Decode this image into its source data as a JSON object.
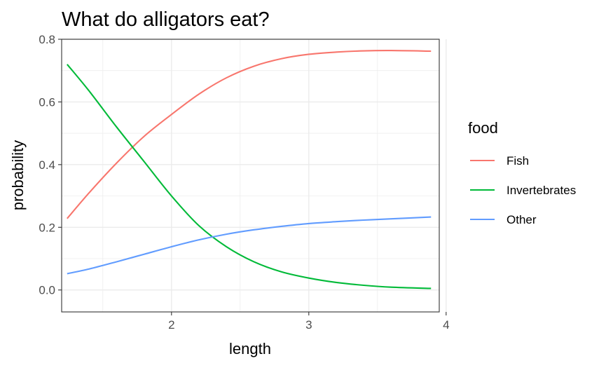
{
  "chart_data": {
    "type": "line",
    "title": "What do alligators eat?",
    "xlabel": "length",
    "ylabel": "probability",
    "xlim": [
      1.2,
      3.95
    ],
    "ylim": [
      -0.07,
      0.8
    ],
    "x_ticks": [
      2,
      3,
      4
    ],
    "x_tick_labels": [
      "2",
      "3",
      "4"
    ],
    "y_ticks": [
      0.0,
      0.2,
      0.4,
      0.6,
      0.8
    ],
    "y_tick_labels": [
      "0.0",
      "0.2",
      "0.4",
      "0.6",
      "0.8"
    ],
    "grid": true,
    "legend": {
      "title": "food",
      "position": "right"
    },
    "series": [
      {
        "name": "Fish",
        "color": "#F8766D",
        "x": [
          1.24,
          1.4,
          1.6,
          1.8,
          2.0,
          2.2,
          2.4,
          2.6,
          2.8,
          3.0,
          3.2,
          3.4,
          3.6,
          3.89
        ],
        "y": [
          0.228,
          0.31,
          0.405,
          0.49,
          0.56,
          0.625,
          0.677,
          0.714,
          0.738,
          0.752,
          0.759,
          0.763,
          0.764,
          0.762
        ]
      },
      {
        "name": "Invertebrates",
        "color": "#00BA38",
        "x": [
          1.24,
          1.4,
          1.6,
          1.8,
          2.0,
          2.2,
          2.4,
          2.6,
          2.8,
          3.0,
          3.2,
          3.4,
          3.6,
          3.89
        ],
        "y": [
          0.72,
          0.635,
          0.52,
          0.41,
          0.3,
          0.205,
          0.138,
          0.09,
          0.058,
          0.038,
          0.024,
          0.015,
          0.009,
          0.005
        ]
      },
      {
        "name": "Other",
        "color": "#619CFF",
        "x": [
          1.24,
          1.4,
          1.6,
          1.8,
          2.0,
          2.2,
          2.4,
          2.6,
          2.8,
          3.0,
          3.2,
          3.4,
          3.6,
          3.89
        ],
        "y": [
          0.052,
          0.067,
          0.09,
          0.114,
          0.138,
          0.16,
          0.178,
          0.192,
          0.203,
          0.212,
          0.218,
          0.223,
          0.227,
          0.233
        ]
      }
    ]
  }
}
